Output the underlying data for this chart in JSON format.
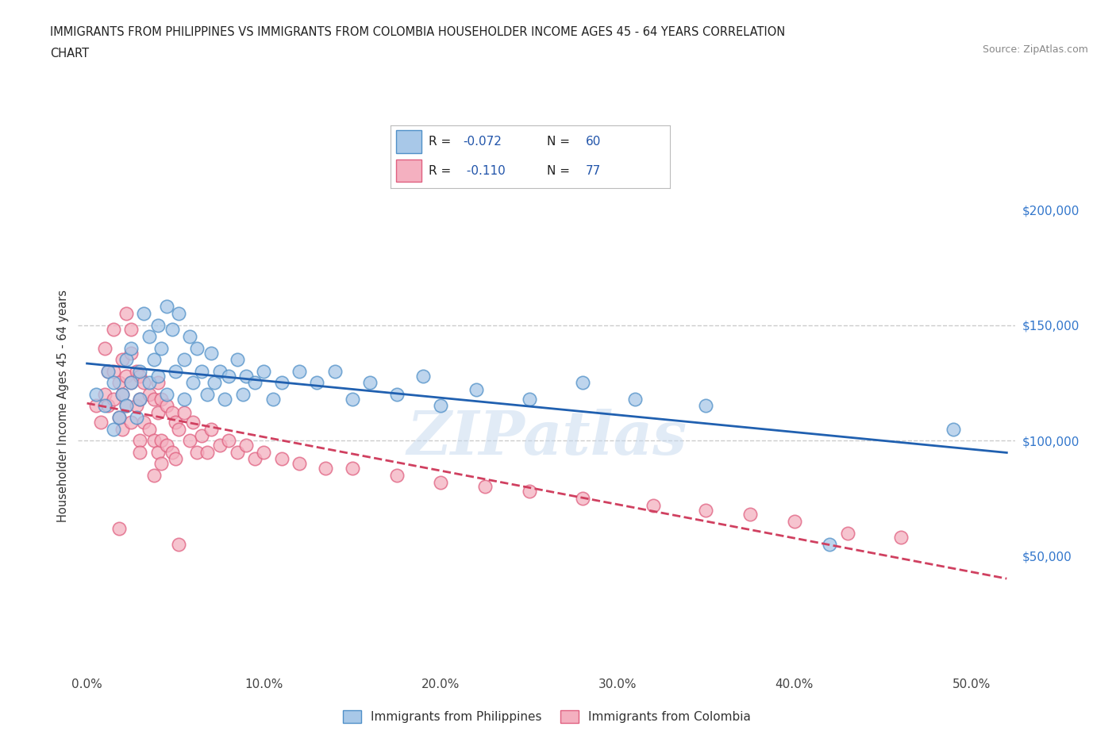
{
  "title_line1": "IMMIGRANTS FROM PHILIPPINES VS IMMIGRANTS FROM COLOMBIA HOUSEHOLDER INCOME AGES 45 - 64 YEARS CORRELATION",
  "title_line2": "CHART",
  "source": "Source: ZipAtlas.com",
  "ylabel": "Householder Income Ages 45 - 64 years",
  "xlim": [
    -0.005,
    0.525
  ],
  "ylim": [
    0,
    230000
  ],
  "xticks": [
    0.0,
    0.1,
    0.2,
    0.3,
    0.4,
    0.5
  ],
  "xticklabels": [
    "0.0%",
    "10.0%",
    "20.0%",
    "30.0%",
    "40.0%",
    "50.0%"
  ],
  "yticks_right": [
    50000,
    100000,
    150000,
    200000
  ],
  "ytick_labels_right": [
    "$50,000",
    "$100,000",
    "$150,000",
    "$200,000"
  ],
  "hlines": [
    150000,
    100000
  ],
  "philippines_color": "#a8c8e8",
  "colombia_color": "#f4b0c0",
  "philippines_edge_color": "#5090c8",
  "colombia_edge_color": "#e06080",
  "philippines_line_color": "#2060b0",
  "colombia_line_color": "#d04060",
  "r_philippines": -0.072,
  "n_philippines": 60,
  "r_colombia": -0.11,
  "n_colombia": 77,
  "watermark": "ZIPatlas",
  "legend_label_1": "Immigrants from Philippines",
  "legend_label_2": "Immigrants from Colombia",
  "philippines_x": [
    0.005,
    0.01,
    0.012,
    0.015,
    0.015,
    0.018,
    0.02,
    0.022,
    0.022,
    0.025,
    0.025,
    0.028,
    0.03,
    0.03,
    0.032,
    0.035,
    0.035,
    0.038,
    0.04,
    0.04,
    0.042,
    0.045,
    0.045,
    0.048,
    0.05,
    0.052,
    0.055,
    0.055,
    0.058,
    0.06,
    0.062,
    0.065,
    0.068,
    0.07,
    0.072,
    0.075,
    0.078,
    0.08,
    0.085,
    0.088,
    0.09,
    0.095,
    0.1,
    0.105,
    0.11,
    0.12,
    0.13,
    0.14,
    0.15,
    0.16,
    0.175,
    0.19,
    0.2,
    0.22,
    0.25,
    0.28,
    0.31,
    0.35,
    0.42,
    0.49
  ],
  "philippines_y": [
    120000,
    115000,
    130000,
    125000,
    105000,
    110000,
    120000,
    135000,
    115000,
    125000,
    140000,
    110000,
    130000,
    118000,
    155000,
    145000,
    125000,
    135000,
    150000,
    128000,
    140000,
    158000,
    120000,
    148000,
    130000,
    155000,
    135000,
    118000,
    145000,
    125000,
    140000,
    130000,
    120000,
    138000,
    125000,
    130000,
    118000,
    128000,
    135000,
    120000,
    128000,
    125000,
    130000,
    118000,
    125000,
    130000,
    125000,
    130000,
    118000,
    125000,
    120000,
    128000,
    115000,
    122000,
    118000,
    125000,
    118000,
    115000,
    55000,
    105000
  ],
  "colombia_x": [
    0.005,
    0.008,
    0.01,
    0.01,
    0.012,
    0.012,
    0.015,
    0.015,
    0.015,
    0.018,
    0.018,
    0.02,
    0.02,
    0.02,
    0.022,
    0.022,
    0.025,
    0.025,
    0.025,
    0.028,
    0.028,
    0.03,
    0.03,
    0.03,
    0.032,
    0.032,
    0.035,
    0.035,
    0.038,
    0.038,
    0.04,
    0.04,
    0.04,
    0.042,
    0.042,
    0.045,
    0.045,
    0.048,
    0.048,
    0.05,
    0.05,
    0.052,
    0.055,
    0.058,
    0.06,
    0.062,
    0.065,
    0.068,
    0.07,
    0.075,
    0.08,
    0.085,
    0.09,
    0.095,
    0.1,
    0.11,
    0.12,
    0.135,
    0.15,
    0.175,
    0.2,
    0.225,
    0.25,
    0.28,
    0.32,
    0.35,
    0.375,
    0.4,
    0.43,
    0.46,
    0.022,
    0.025,
    0.038,
    0.03,
    0.018,
    0.042,
    0.052
  ],
  "colombia_y": [
    115000,
    108000,
    140000,
    120000,
    130000,
    115000,
    148000,
    130000,
    118000,
    125000,
    110000,
    135000,
    120000,
    105000,
    128000,
    115000,
    138000,
    125000,
    108000,
    130000,
    115000,
    128000,
    118000,
    100000,
    125000,
    108000,
    120000,
    105000,
    118000,
    100000,
    125000,
    112000,
    95000,
    118000,
    100000,
    115000,
    98000,
    112000,
    95000,
    108000,
    92000,
    105000,
    112000,
    100000,
    108000,
    95000,
    102000,
    95000,
    105000,
    98000,
    100000,
    95000,
    98000,
    92000,
    95000,
    92000,
    90000,
    88000,
    88000,
    85000,
    82000,
    80000,
    78000,
    75000,
    72000,
    70000,
    68000,
    65000,
    60000,
    58000,
    155000,
    148000,
    85000,
    95000,
    62000,
    90000,
    55000
  ]
}
